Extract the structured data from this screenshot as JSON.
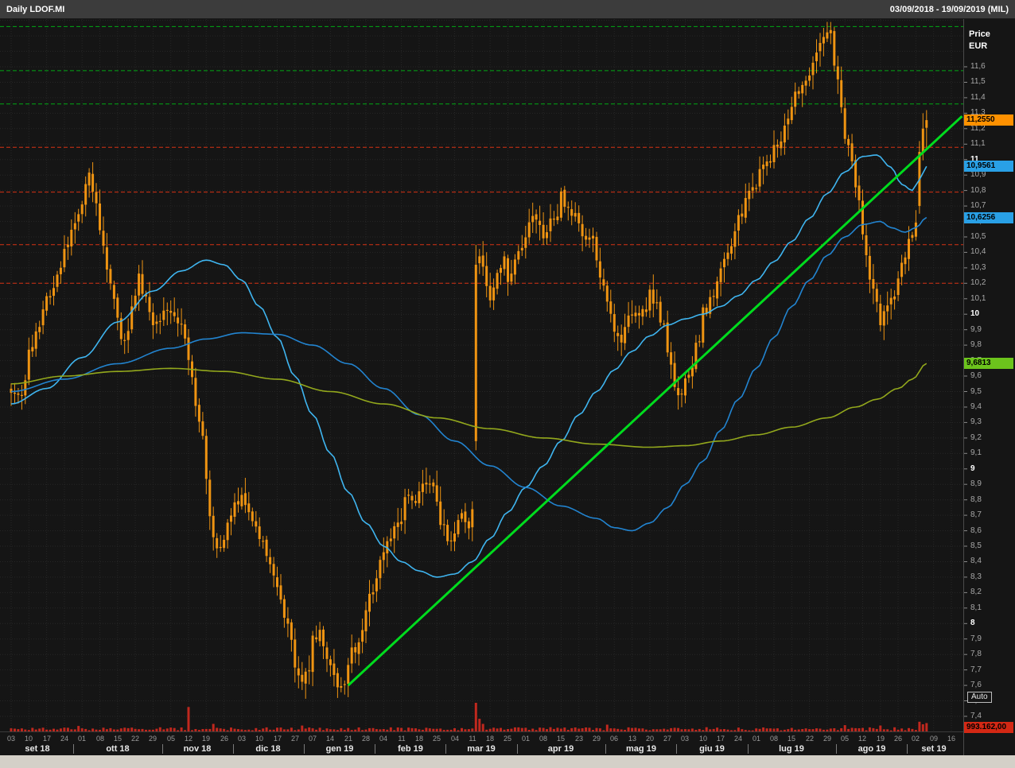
{
  "header": {
    "title": "Daily LDOF.MI",
    "date_range": "03/09/2018 - 19/09/2019 (MIL)"
  },
  "axis": {
    "price_title_line1": "Price",
    "price_title_line2": "EUR",
    "auto_label": "Auto"
  },
  "price_labels": {
    "last": {
      "text": "11,2550",
      "value": 11.255,
      "bg": "#ff9100"
    },
    "avg1": {
      "text": "10,9561",
      "value": 10.9561,
      "bg": "#29a0e6"
    },
    "avg2": {
      "text": "10,6256",
      "value": 10.6256,
      "bg": "#29a0e6"
    },
    "avg3": {
      "text": "9,6813",
      "value": 9.6813,
      "bg": "#6cc41c"
    },
    "volume": {
      "text": "993.162,00",
      "value": 993162,
      "bg": "#d42814"
    }
  },
  "chart_data": {
    "type": "candlestick",
    "title": "Daily LDOF.MI",
    "period": "03/09/2018 - 19/09/2019",
    "exchange_note": "(MIL)",
    "candle_color": "#ef9412",
    "volume_color": "#c0281e",
    "background": "#151515",
    "y_axis": {
      "min": 7.4,
      "max": 11.9,
      "tick_step": 0.1,
      "ticks": [
        "11,6",
        "11,5",
        "11,4",
        "11,3",
        "11,2",
        "11,1",
        "11",
        "10,9",
        "10,8",
        "10,7",
        "10,6",
        "10,5",
        "10,4",
        "10,3",
        "10,2",
        "10,1",
        "10",
        "9,9",
        "9,8",
        "9,7",
        "9,6",
        "9,5",
        "9,4",
        "9,3",
        "9,2",
        "9,1",
        "9",
        "8,9",
        "8,8",
        "8,7",
        "8,6",
        "8,5",
        "8,4",
        "8,3",
        "8,2",
        "8,1",
        "8",
        "7,9",
        "7,8",
        "7,7",
        "7,6",
        "7,5",
        "7,4"
      ]
    },
    "x_axis": {
      "months": [
        {
          "label": "set 18",
          "days": [
            "03",
            "10",
            "17",
            "24"
          ]
        },
        {
          "label": "ott 18",
          "days": [
            "01",
            "08",
            "15",
            "22",
            "29"
          ]
        },
        {
          "label": "nov 18",
          "days": [
            "05",
            "12",
            "19",
            "26"
          ]
        },
        {
          "label": "dic 18",
          "days": [
            "03",
            "10",
            "17",
            "27"
          ]
        },
        {
          "label": "gen 19",
          "days": [
            "07",
            "14",
            "21",
            "28"
          ]
        },
        {
          "label": "feb 19",
          "days": [
            "04",
            "11",
            "18",
            "25"
          ]
        },
        {
          "label": "mar 19",
          "days": [
            "04",
            "11",
            "18",
            "25"
          ]
        },
        {
          "label": "apr 19",
          "days": [
            "01",
            "08",
            "15",
            "23",
            "29"
          ]
        },
        {
          "label": "mag 19",
          "days": [
            "06",
            "13",
            "20",
            "27"
          ]
        },
        {
          "label": "giu 19",
          "days": [
            "03",
            "10",
            "17",
            "24"
          ]
        },
        {
          "label": "lug 19",
          "days": [
            "01",
            "08",
            "15",
            "22",
            "29"
          ]
        },
        {
          "label": "ago 19",
          "days": [
            "05",
            "12",
            "19",
            "26"
          ]
        },
        {
          "label": "set 19",
          "days": [
            "02",
            "09",
            "16"
          ]
        }
      ]
    },
    "last_price": 11.255,
    "levels": {
      "resistance_green": [
        11.86,
        11.575,
        11.36
      ],
      "support_red": [
        11.08,
        10.79,
        10.45,
        10.2
      ],
      "green_color": "#00a814",
      "red_color": "#d63214"
    },
    "trendline": {
      "day_from": 95,
      "price_from": 7.6,
      "day_to": 268,
      "price_to": 11.28,
      "color": "#00dc1e"
    },
    "moving_averages": [
      {
        "name": "ma-fast",
        "color": "#3fb5f0",
        "end_value": 10.9561,
        "anchors": [
          [
            0,
            9.42
          ],
          [
            10,
            9.52
          ],
          [
            20,
            9.72
          ],
          [
            30,
            9.95
          ],
          [
            40,
            10.15
          ],
          [
            48,
            10.28
          ],
          [
            55,
            10.35
          ],
          [
            60,
            10.32
          ],
          [
            65,
            10.22
          ],
          [
            70,
            10.05
          ],
          [
            75,
            9.85
          ],
          [
            80,
            9.6
          ],
          [
            85,
            9.35
          ],
          [
            90,
            9.1
          ],
          [
            95,
            8.85
          ],
          [
            100,
            8.65
          ],
          [
            105,
            8.5
          ],
          [
            110,
            8.4
          ],
          [
            115,
            8.34
          ],
          [
            120,
            8.3
          ],
          [
            125,
            8.32
          ],
          [
            130,
            8.4
          ],
          [
            135,
            8.55
          ],
          [
            140,
            8.72
          ],
          [
            145,
            8.88
          ],
          [
            150,
            9.02
          ],
          [
            155,
            9.18
          ],
          [
            160,
            9.35
          ],
          [
            165,
            9.5
          ],
          [
            170,
            9.64
          ],
          [
            175,
            9.76
          ],
          [
            180,
            9.86
          ],
          [
            185,
            9.93
          ],
          [
            190,
            9.97
          ],
          [
            195,
            10.0
          ],
          [
            200,
            10.05
          ],
          [
            205,
            10.12
          ],
          [
            210,
            10.22
          ],
          [
            215,
            10.34
          ],
          [
            220,
            10.47
          ],
          [
            225,
            10.62
          ],
          [
            230,
            10.78
          ],
          [
            235,
            10.92
          ],
          [
            240,
            11.02
          ],
          [
            244,
            11.03
          ],
          [
            248,
            10.95
          ],
          [
            251,
            10.84
          ],
          [
            254,
            10.8
          ],
          [
            256,
            10.87
          ],
          [
            258,
            10.9561
          ]
        ]
      },
      {
        "name": "ma-mid",
        "color": "#2284d0",
        "end_value": 10.6256,
        "anchors": [
          [
            0,
            9.5
          ],
          [
            15,
            9.58
          ],
          [
            30,
            9.68
          ],
          [
            45,
            9.78
          ],
          [
            55,
            9.84
          ],
          [
            65,
            9.88
          ],
          [
            75,
            9.87
          ],
          [
            85,
            9.8
          ],
          [
            95,
            9.68
          ],
          [
            105,
            9.52
          ],
          [
            115,
            9.35
          ],
          [
            125,
            9.18
          ],
          [
            135,
            9.02
          ],
          [
            145,
            8.88
          ],
          [
            155,
            8.76
          ],
          [
            165,
            8.68
          ],
          [
            170,
            8.62
          ],
          [
            175,
            8.6
          ],
          [
            180,
            8.65
          ],
          [
            185,
            8.75
          ],
          [
            190,
            8.9
          ],
          [
            195,
            9.05
          ],
          [
            200,
            9.25
          ],
          [
            205,
            9.45
          ],
          [
            210,
            9.65
          ],
          [
            215,
            9.85
          ],
          [
            220,
            10.05
          ],
          [
            225,
            10.22
          ],
          [
            230,
            10.38
          ],
          [
            235,
            10.5
          ],
          [
            240,
            10.58
          ],
          [
            245,
            10.6
          ],
          [
            248,
            10.56
          ],
          [
            252,
            10.53
          ],
          [
            255,
            10.56
          ],
          [
            258,
            10.6256
          ]
        ]
      },
      {
        "name": "ma-slow",
        "color": "#93a81c",
        "end_value": 9.6813,
        "anchors": [
          [
            0,
            9.55
          ],
          [
            15,
            9.6
          ],
          [
            30,
            9.63
          ],
          [
            45,
            9.65
          ],
          [
            60,
            9.63
          ],
          [
            75,
            9.58
          ],
          [
            90,
            9.5
          ],
          [
            105,
            9.42
          ],
          [
            120,
            9.33
          ],
          [
            135,
            9.26
          ],
          [
            150,
            9.2
          ],
          [
            165,
            9.16
          ],
          [
            180,
            9.14
          ],
          [
            190,
            9.15
          ],
          [
            200,
            9.18
          ],
          [
            210,
            9.22
          ],
          [
            220,
            9.27
          ],
          [
            230,
            9.33
          ],
          [
            238,
            9.4
          ],
          [
            244,
            9.45
          ],
          [
            250,
            9.52
          ],
          [
            254,
            9.58
          ],
          [
            258,
            9.6813
          ]
        ]
      }
    ],
    "close_anchors": [
      [
        0,
        9.52
      ],
      [
        3,
        9.45
      ],
      [
        5,
        9.75
      ],
      [
        8,
        9.95
      ],
      [
        10,
        10.1
      ],
      [
        13,
        10.25
      ],
      [
        15,
        10.4
      ],
      [
        18,
        10.6
      ],
      [
        20,
        10.75
      ],
      [
        22,
        10.9
      ],
      [
        24,
        10.7
      ],
      [
        25,
        10.55
      ],
      [
        27,
        10.3
      ],
      [
        29,
        10.1
      ],
      [
        30,
        9.95
      ],
      [
        32,
        9.8
      ],
      [
        34,
        10.05
      ],
      [
        36,
        10.25
      ],
      [
        38,
        10.1
      ],
      [
        40,
        9.9
      ],
      [
        43,
        10.0
      ],
      [
        45,
        10.05
      ],
      [
        48,
        9.9
      ],
      [
        50,
        9.7
      ],
      [
        52,
        9.45
      ],
      [
        54,
        9.2
      ],
      [
        55,
        8.9
      ],
      [
        57,
        8.55
      ],
      [
        59,
        8.45
      ],
      [
        60,
        8.55
      ],
      [
        62,
        8.7
      ],
      [
        64,
        8.8
      ],
      [
        65,
        8.85
      ],
      [
        67,
        8.7
      ],
      [
        69,
        8.6
      ],
      [
        70,
        8.55
      ],
      [
        73,
        8.4
      ],
      [
        75,
        8.25
      ],
      [
        77,
        8.05
      ],
      [
        79,
        7.9
      ],
      [
        80,
        7.75
      ],
      [
        82,
        7.6
      ],
      [
        84,
        7.7
      ],
      [
        85,
        7.9
      ],
      [
        87,
        7.95
      ],
      [
        89,
        7.8
      ],
      [
        90,
        7.7
      ],
      [
        92,
        7.55
      ],
      [
        94,
        7.65
      ],
      [
        95,
        7.75
      ],
      [
        97,
        7.85
      ],
      [
        99,
        7.95
      ],
      [
        100,
        8.1
      ],
      [
        103,
        8.3
      ],
      [
        105,
        8.45
      ],
      [
        108,
        8.6
      ],
      [
        110,
        8.7
      ],
      [
        112,
        8.85
      ],
      [
        114,
        8.8
      ],
      [
        115,
        8.9
      ],
      [
        117,
        8.95
      ],
      [
        119,
        8.85
      ],
      [
        120,
        8.75
      ],
      [
        122,
        8.6
      ],
      [
        124,
        8.55
      ],
      [
        125,
        8.6
      ],
      [
        127,
        8.7
      ],
      [
        129,
        8.65
      ],
      [
        130,
        8.7
      ],
      [
        131,
        10.32
      ],
      [
        132,
        10.35
      ],
      [
        134,
        10.2
      ],
      [
        135,
        10.05
      ],
      [
        137,
        10.25
      ],
      [
        139,
        10.35
      ],
      [
        140,
        10.2
      ],
      [
        142,
        10.35
      ],
      [
        144,
        10.45
      ],
      [
        145,
        10.5
      ],
      [
        147,
        10.6
      ],
      [
        149,
        10.55
      ],
      [
        150,
        10.5
      ],
      [
        152,
        10.6
      ],
      [
        154,
        10.65
      ],
      [
        155,
        10.75
      ],
      [
        157,
        10.7
      ],
      [
        159,
        10.65
      ],
      [
        160,
        10.55
      ],
      [
        162,
        10.5
      ],
      [
        164,
        10.45
      ],
      [
        165,
        10.35
      ],
      [
        167,
        10.15
      ],
      [
        169,
        10.0
      ],
      [
        170,
        9.9
      ],
      [
        172,
        9.85
      ],
      [
        174,
        9.95
      ],
      [
        175,
        10.0
      ],
      [
        177,
        9.95
      ],
      [
        179,
        10.05
      ],
      [
        180,
        10.15
      ],
      [
        182,
        10.05
      ],
      [
        184,
        9.9
      ],
      [
        185,
        9.75
      ],
      [
        187,
        9.55
      ],
      [
        189,
        9.45
      ],
      [
        190,
        9.55
      ],
      [
        192,
        9.7
      ],
      [
        194,
        9.85
      ],
      [
        195,
        10.0
      ],
      [
        197,
        10.1
      ],
      [
        199,
        10.2
      ],
      [
        200,
        10.3
      ],
      [
        202,
        10.4
      ],
      [
        204,
        10.5
      ],
      [
        205,
        10.6
      ],
      [
        207,
        10.75
      ],
      [
        209,
        10.8
      ],
      [
        210,
        10.85
      ],
      [
        212,
        10.95
      ],
      [
        214,
        11.0
      ],
      [
        215,
        11.05
      ],
      [
        217,
        11.15
      ],
      [
        219,
        11.25
      ],
      [
        220,
        11.35
      ],
      [
        222,
        11.45
      ],
      [
        224,
        11.5
      ],
      [
        225,
        11.55
      ],
      [
        227,
        11.68
      ],
      [
        229,
        11.75
      ],
      [
        230,
        11.8
      ],
      [
        231,
        11.82
      ],
      [
        232,
        11.65
      ],
      [
        233,
        11.5
      ],
      [
        234,
        11.35
      ],
      [
        235,
        11.15
      ],
      [
        237,
        10.95
      ],
      [
        239,
        10.7
      ],
      [
        240,
        10.5
      ],
      [
        242,
        10.25
      ],
      [
        244,
        10.1
      ],
      [
        245,
        9.95
      ],
      [
        247,
        10.05
      ],
      [
        249,
        10.15
      ],
      [
        250,
        10.25
      ],
      [
        252,
        10.4
      ],
      [
        254,
        10.5
      ],
      [
        255,
        10.55
      ],
      [
        256,
        11.05
      ],
      [
        257,
        11.2
      ],
      [
        258,
        11.255
      ]
    ],
    "candle_overrides": {
      "131": {
        "o": 9.18,
        "h": 10.45,
        "l": 9.12,
        "c": 10.32
      },
      "256": {
        "o": 10.7,
        "h": 11.12,
        "l": 10.65,
        "c": 11.05
      },
      "257": {
        "h": 11.3,
        "c": 11.2
      },
      "258": {
        "h": 11.32,
        "l": 11.08,
        "c": 11.255
      }
    },
    "volume": {
      "latest_label": "993.162,00",
      "latest": 993162,
      "max_scale": 3400000,
      "base_range": [
        120000,
        500000
      ],
      "spikes": {
        "19": 650000,
        "50": 2900000,
        "57": 900000,
        "82": 700000,
        "131": 3400000,
        "132": 1500000,
        "133": 900000,
        "168": 800000,
        "235": 750000,
        "245": 700000,
        "256": 1150000,
        "257": 850000,
        "258": 993162
      }
    }
  }
}
